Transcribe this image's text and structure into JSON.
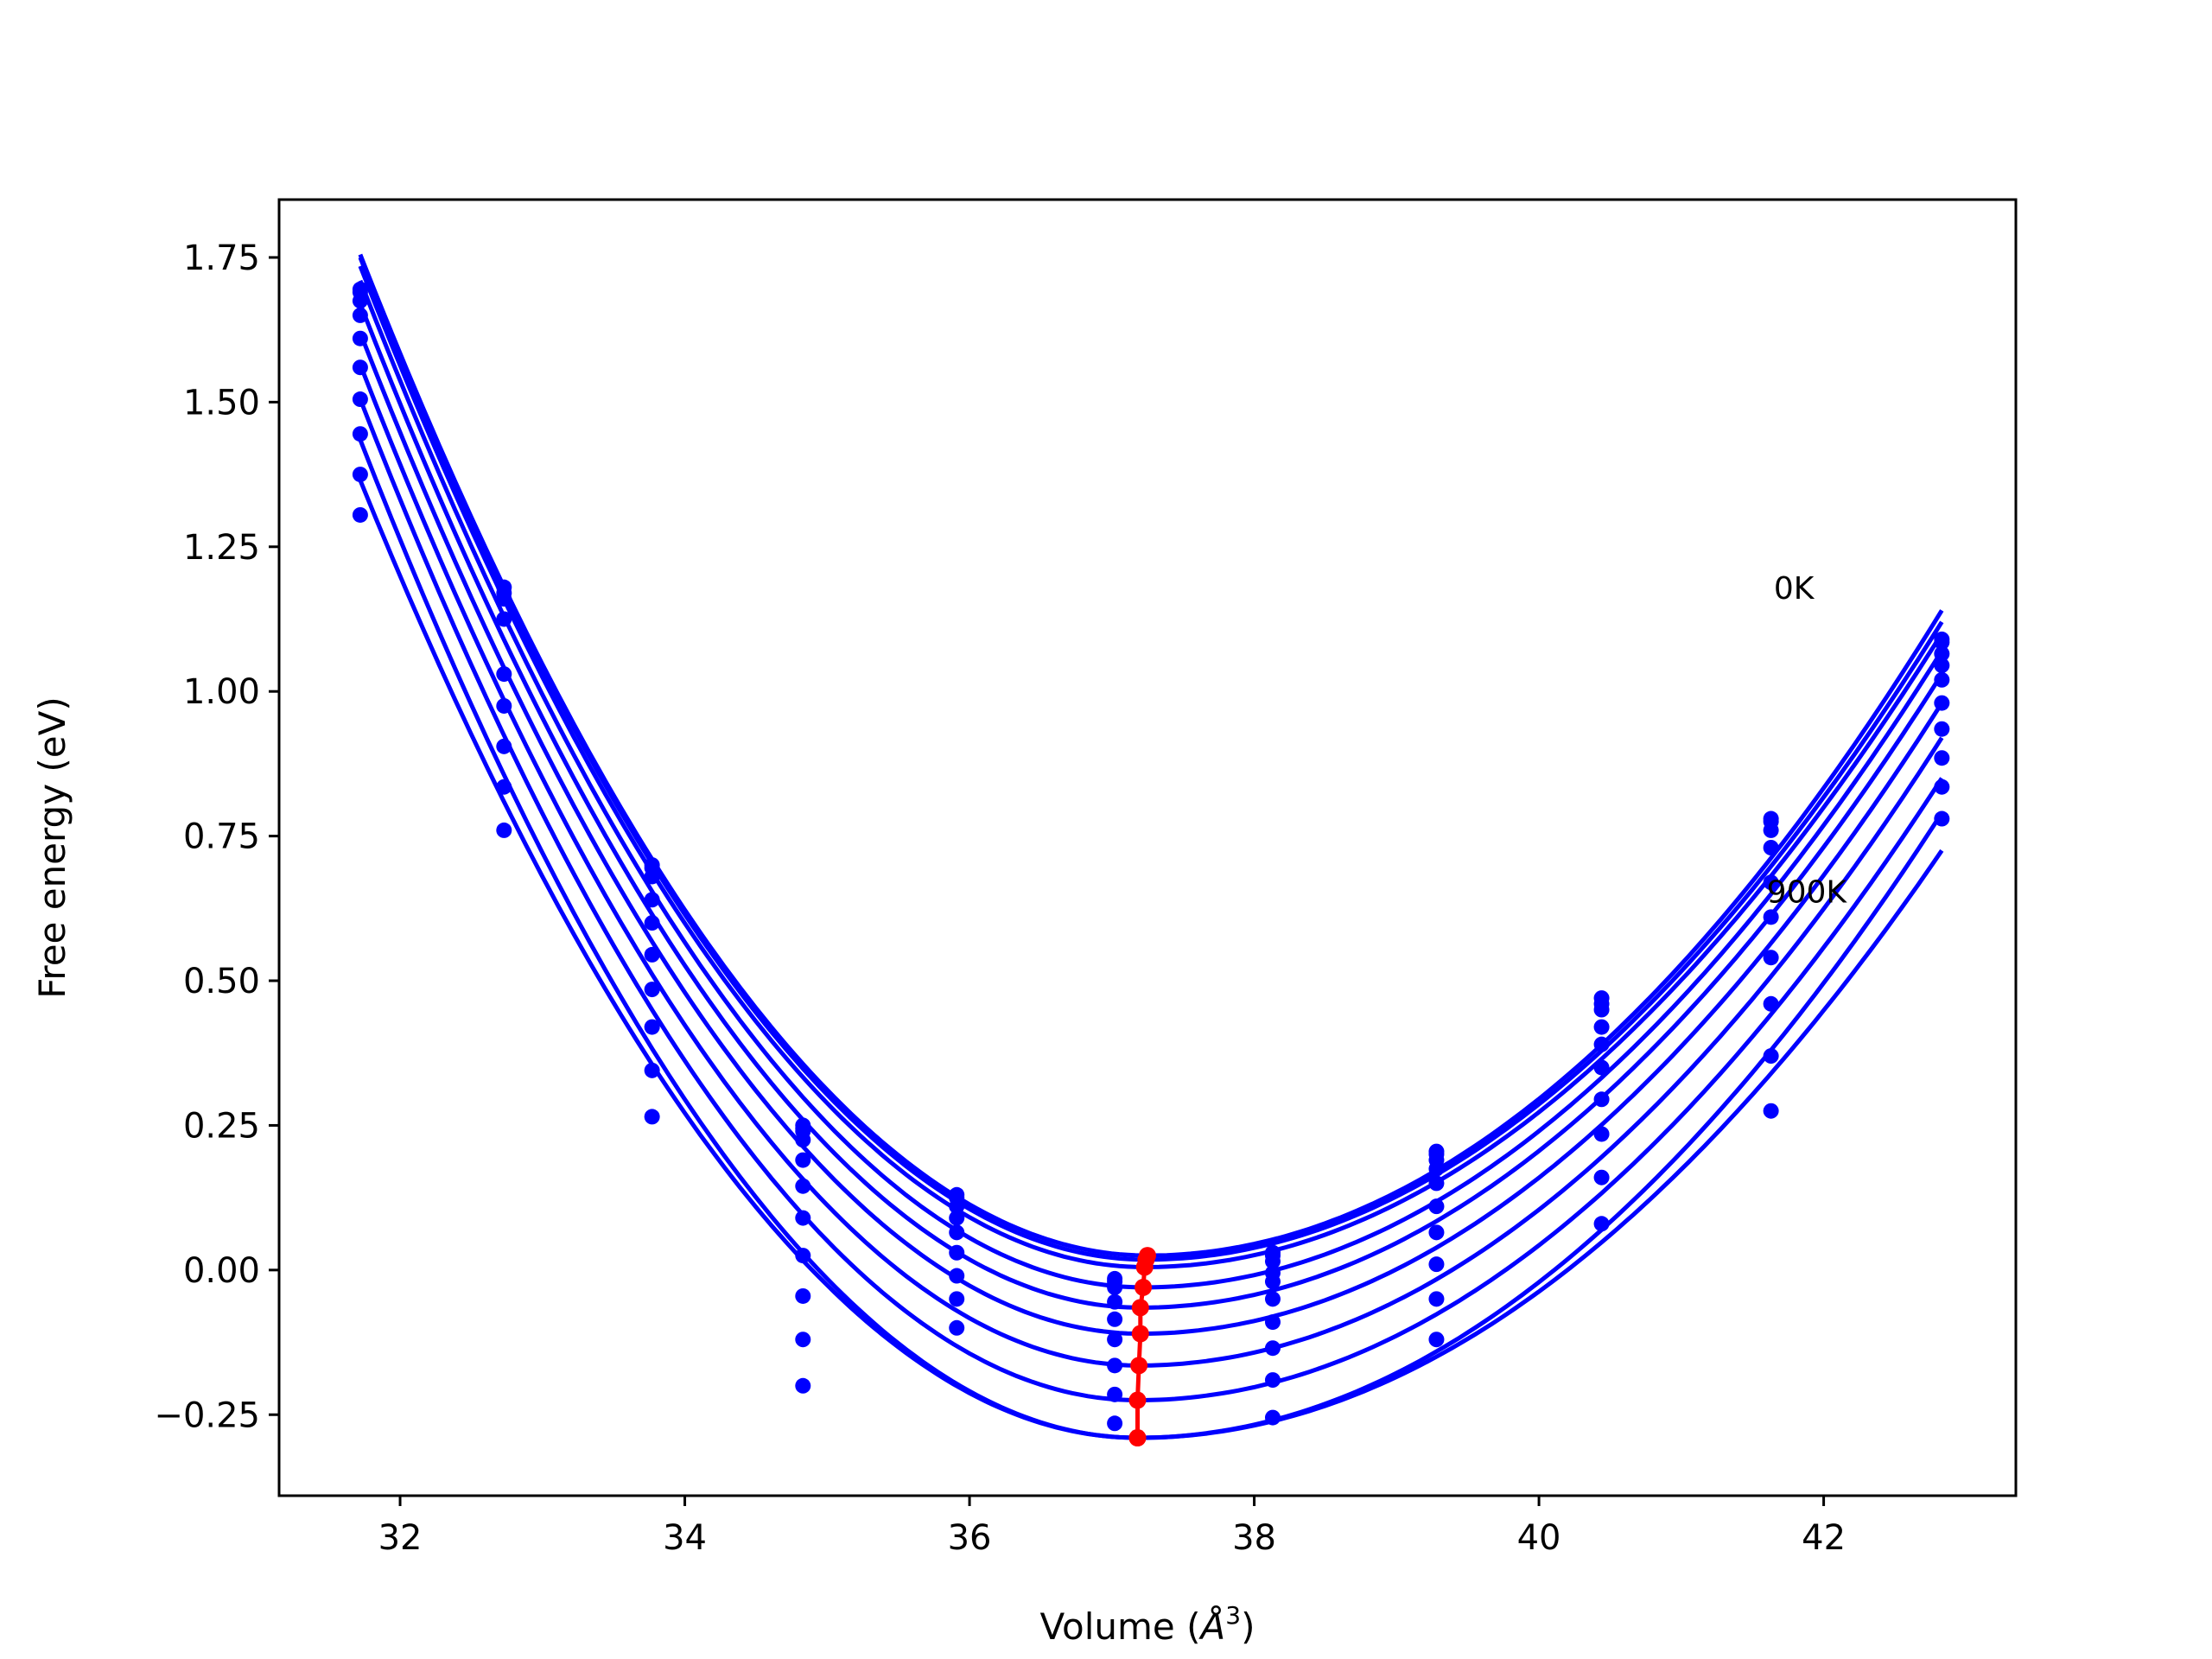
{
  "chart_data": {
    "type": "line",
    "title": "",
    "xlabel": "Volume (",
    "xlabel_unit": "Å",
    "xlabel_exponent": "3",
    "xlabel_close": ")",
    "ylabel": "Free energy (eV)",
    "xlim": [
      31.15,
      43.35
    ],
    "ylim": [
      -0.39,
      1.85
    ],
    "xticks": [
      32,
      34,
      36,
      38,
      40,
      42
    ],
    "xtick_labels": [
      "32",
      "34",
      "36",
      "38",
      "40",
      "42"
    ],
    "yticks": [
      -0.25,
      0.0,
      0.25,
      0.5,
      0.75,
      1.0,
      1.25,
      1.5,
      1.75
    ],
    "ytick_labels": [
      "−0.25",
      "0.00",
      "0.25",
      "0.50",
      "0.75",
      "1.00",
      "1.25",
      "1.50",
      "1.75"
    ],
    "grid": false,
    "legend": "none",
    "colors": {
      "fit": "#0000ff",
      "points": "#0000ff",
      "minima": "#ff0000"
    },
    "volumes": [
      31.72,
      32.73,
      33.77,
      34.83,
      35.91,
      37.02,
      38.13,
      39.28,
      40.44,
      41.63,
      42.83
    ],
    "series": [
      {
        "temperature_label": "0K",
        "label_position": [
          41.65,
          1.16
        ],
        "min_volume": 37.25,
        "min_energy": 0.025,
        "fit_right_end": 1.14,
        "points": [
          1.695,
          1.17,
          0.695,
          0.245,
          0.125,
          -0.015,
          0.03,
          0.205,
          0.47,
          0.78,
          1.09
        ]
      },
      {
        "min_volume": 37.24,
        "min_energy": 0.018,
        "fit_right_end": 1.12,
        "points": [
          1.69,
          1.18,
          0.7,
          0.25,
          0.13,
          -0.02,
          0.025,
          0.2,
          0.46,
          0.775,
          1.085
        ]
      },
      {
        "min_volume": 37.23,
        "min_energy": 0.005,
        "fit_right_end": 1.1,
        "points": [
          1.675,
          1.16,
          0.68,
          0.24,
          0.11,
          -0.03,
          0.015,
          0.19,
          0.45,
          0.76,
          1.065
        ]
      },
      {
        "min_volume": 37.22,
        "min_energy": -0.03,
        "fit_right_end": 1.07,
        "points": [
          1.65,
          1.125,
          0.64,
          0.225,
          0.09,
          -0.055,
          -0.005,
          0.175,
          0.42,
          0.73,
          1.045
        ]
      },
      {
        "min_volume": 37.2,
        "min_energy": -0.065,
        "fit_right_end": 1.03,
        "points": [
          1.61,
          1.03,
          0.6,
          0.19,
          0.065,
          -0.085,
          -0.02,
          0.15,
          0.39,
          0.67,
          1.02
        ]
      },
      {
        "min_volume": 37.2,
        "min_energy": -0.11,
        "fit_right_end": 0.98,
        "points": [
          1.56,
          0.975,
          0.545,
          0.145,
          0.03,
          -0.12,
          -0.05,
          0.11,
          0.35,
          0.61,
          0.98
        ]
      },
      {
        "min_volume": 37.19,
        "min_energy": -0.165,
        "fit_right_end": 0.92,
        "points": [
          1.505,
          0.905,
          0.485,
          0.09,
          -0.01,
          -0.165,
          -0.09,
          0.065,
          0.295,
          0.54,
          0.935
        ]
      },
      {
        "min_volume": 37.18,
        "min_energy": -0.225,
        "fit_right_end": 0.85,
        "points": [
          1.445,
          0.835,
          0.42,
          0.025,
          -0.05,
          -0.215,
          -0.135,
          0.01,
          0.235,
          0.46,
          0.885
        ]
      },
      {
        "min_volume": 37.18,
        "min_energy": -0.29,
        "fit_right_end": 0.79,
        "points": [
          1.375,
          0.76,
          0.345,
          -0.045,
          -0.1,
          -0.265,
          -0.19,
          -0.05,
          0.16,
          0.37,
          0.835
        ]
      },
      {
        "temperature_label": "900K",
        "label_position": [
          41.6,
          0.635
        ],
        "min_volume": 37.18,
        "min_energy": -0.29,
        "fit_right_end": 0.725,
        "points": [
          1.305,
          null,
          0.265,
          -0.12,
          null,
          null,
          -0.255,
          -0.12,
          0.08,
          0.275,
          0.78
        ]
      }
    ],
    "extra_points": [
      [
        34.83,
        -0.2
      ]
    ]
  }
}
